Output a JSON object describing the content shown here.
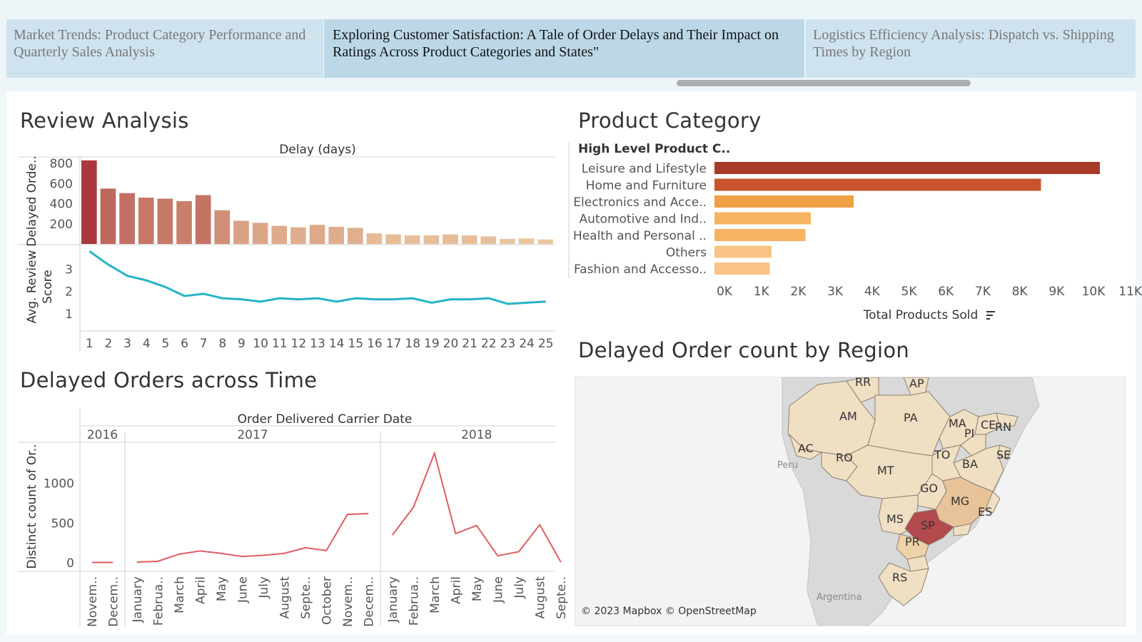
{
  "story_tabs": [
    {
      "label": "Market Trends: Product Category Performance and Quarterly Sales Analysis",
      "active": false
    },
    {
      "label": "Exploring Customer Satisfaction: A Tale of Order Delays and Their Impact on Ratings Across Product Categories and States\"",
      "active": true
    },
    {
      "label": "Logistics Efficiency Analysis: Dispatch vs. Shipping Times by Region",
      "active": false
    }
  ],
  "sections": {
    "review_analysis": "Review Analysis",
    "product_category": "Product Category",
    "delayed_over_time": "Delayed Orders across Time",
    "delayed_by_region": "Delayed Order count by Region"
  },
  "colors": {
    "delay_dark": "#a8383c",
    "delay_light": "#f0d2a7",
    "line_teal": "#26b4c6",
    "line_red": "#e05c62",
    "sp_dark": "#b24a4e",
    "mg_mid": "#e8c39a",
    "pr_mid": "#efd3a8",
    "state_base": "#efdfc3"
  },
  "map_attribution": "© 2023 Mapbox © OpenStreetMap",
  "map_labels": [
    "RR",
    "AP",
    "AM",
    "PA",
    "MA",
    "CE",
    "RN",
    "PI",
    "AC",
    "RO",
    "TO",
    "SE",
    "BA",
    "MT",
    "GO",
    "MG",
    "ES",
    "MS",
    "SP",
    "PR",
    "RS",
    "Peru",
    "Argentina"
  ],
  "chart_data": [
    {
      "type": "bar",
      "id": "delayed_orders_by_delay",
      "title": "Delay (days)",
      "ylabel": "Delayed Orde..",
      "categories": [
        1,
        2,
        3,
        4,
        5,
        6,
        7,
        8,
        9,
        10,
        11,
        12,
        13,
        14,
        15,
        16,
        17,
        18,
        19,
        20,
        21,
        22,
        23,
        24,
        25
      ],
      "values": [
        830,
        550,
        505,
        460,
        450,
        425,
        485,
        335,
        230,
        210,
        180,
        165,
        190,
        170,
        160,
        105,
        95,
        85,
        85,
        95,
        85,
        75,
        50,
        55,
        45
      ],
      "yticks": [
        200,
        400,
        600,
        800
      ],
      "ylim": [
        0,
        850
      ]
    },
    {
      "type": "line",
      "id": "avg_review_score",
      "ylabel": "Avg. Review Score",
      "x": [
        1,
        2,
        3,
        4,
        5,
        6,
        7,
        8,
        9,
        10,
        11,
        12,
        13,
        14,
        15,
        16,
        17,
        18,
        19,
        20,
        21,
        22,
        23,
        24,
        25
      ],
      "values": [
        3.8,
        3.2,
        2.7,
        2.5,
        2.2,
        1.8,
        1.9,
        1.7,
        1.65,
        1.55,
        1.7,
        1.65,
        1.7,
        1.55,
        1.7,
        1.65,
        1.65,
        1.7,
        1.5,
        1.65,
        1.65,
        1.7,
        1.45,
        1.5,
        1.55
      ],
      "yticks": [
        1,
        2,
        3
      ],
      "ylim": [
        0.3,
        4.0
      ],
      "xlabel_ticks": [
        "1",
        "2",
        "3",
        "4",
        "5",
        "6",
        "7",
        "8",
        "9",
        "10",
        "11",
        "12",
        "13",
        "14",
        "15",
        "16",
        "17",
        "18",
        "19",
        "20",
        "21",
        "22",
        "23",
        "24",
        "25"
      ]
    },
    {
      "type": "bar",
      "id": "product_category",
      "orientation": "horizontal",
      "header": "High Level Product C..",
      "categories": [
        "Leisure and Lifestyle",
        "Home and Furniture",
        "Electronics and Acce..",
        "Automotive and Ind..",
        "Health and Personal ..",
        "Others",
        "Fashion and Accesso.."
      ],
      "values": [
        10800,
        9150,
        3900,
        2700,
        2550,
        1600,
        1550
      ],
      "xlabel": "Total Products Sold",
      "xticks": [
        "0K",
        "1K",
        "2K",
        "3K",
        "4K",
        "5K",
        "6K",
        "7K",
        "8K",
        "9K",
        "10K",
        "11K"
      ],
      "xlim": [
        0,
        11000
      ],
      "bar_colors": [
        "#a83a2a",
        "#c8532c",
        "#f0a044",
        "#f6b463",
        "#f6b463",
        "#f9c483",
        "#f9c483"
      ]
    },
    {
      "type": "line",
      "id": "delayed_orders_time",
      "title": "Order Delivered Carrier Date",
      "ylabel": "Distinct count of Or..",
      "years": [
        "2016",
        "2017",
        "2018"
      ],
      "segments": [
        {
          "year": "2016",
          "months": [
            "Novem..",
            "Decem.."
          ],
          "values": [
            5,
            5
          ]
        },
        {
          "year": "2017",
          "months": [
            "January",
            "Februa..",
            "March",
            "April",
            "May",
            "June",
            "July",
            "August",
            "Septe..",
            "October",
            "Novem..",
            "Decem.."
          ],
          "values": [
            10,
            20,
            110,
            150,
            120,
            80,
            95,
            120,
            190,
            155,
            610,
            620
          ]
        },
        {
          "year": "2018",
          "months": [
            "January",
            "Februa..",
            "March",
            "April",
            "May",
            "June",
            "July",
            "August",
            "Septe.."
          ],
          "values": [
            350,
            700,
            1380,
            370,
            470,
            90,
            140,
            480,
            10
          ]
        }
      ],
      "yticks": [
        0,
        500,
        1000
      ],
      "ylim": [
        -80,
        1500
      ]
    },
    {
      "type": "map",
      "id": "delayed_by_region",
      "regions": [
        "SP",
        "MG",
        "PR",
        "RS",
        "ES",
        "MS",
        "GO",
        "MT",
        "BA",
        "TO",
        "MA",
        "PI",
        "CE",
        "RN",
        "SE",
        "PA",
        "AM",
        "RR",
        "AP",
        "AC",
        "RO"
      ],
      "intensity": {
        "SP": 1.0,
        "MG": 0.45,
        "PR": 0.3
      }
    }
  ]
}
